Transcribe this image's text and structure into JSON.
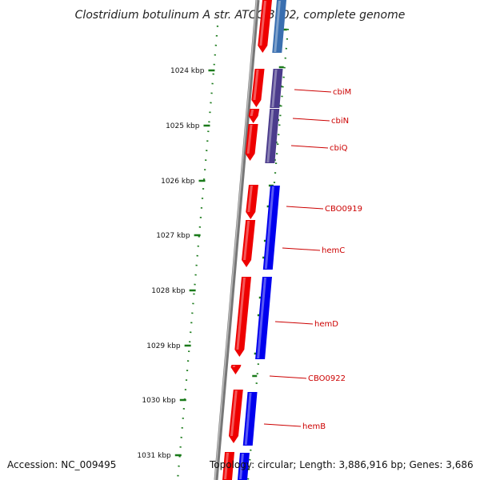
{
  "title": "Clostridium botulinum A str. ATCC 3502, complete genome",
  "footer": {
    "accession": "Accession: NC_009495",
    "topology": "Topology: circular; Length: 3,886,916 bp; Genes: 3,686"
  },
  "colors": {
    "forward_strand": "#ee0000",
    "reverse_strand": "#0000ee",
    "reverse_strand_light": "#3a6fb0",
    "operon_purple": "#4b3c8c",
    "backbone": "#888888",
    "ticks": "#1a7a1a",
    "gene_label": "#cc0000"
  },
  "ticks": [
    {
      "label": "1024 kbp",
      "kbp": 1024
    },
    {
      "label": "1025 kbp",
      "kbp": 1025
    },
    {
      "label": "1026 kbp",
      "kbp": 1026
    },
    {
      "label": "1027 kbp",
      "kbp": 1027
    },
    {
      "label": "1028 kbp",
      "kbp": 1028
    },
    {
      "label": "1029 kbp",
      "kbp": 1029
    },
    {
      "label": "1030 kbp",
      "kbp": 1030
    },
    {
      "label": "1031 kbp",
      "kbp": 1031
    }
  ],
  "gene_labels": [
    {
      "name": "cbiM"
    },
    {
      "name": "cbiN"
    },
    {
      "name": "cbiQ"
    },
    {
      "name": "CBO0919"
    },
    {
      "name": "hemC"
    },
    {
      "name": "hemD"
    },
    {
      "name": "CBO0922"
    },
    {
      "name": "hemB"
    }
  ]
}
